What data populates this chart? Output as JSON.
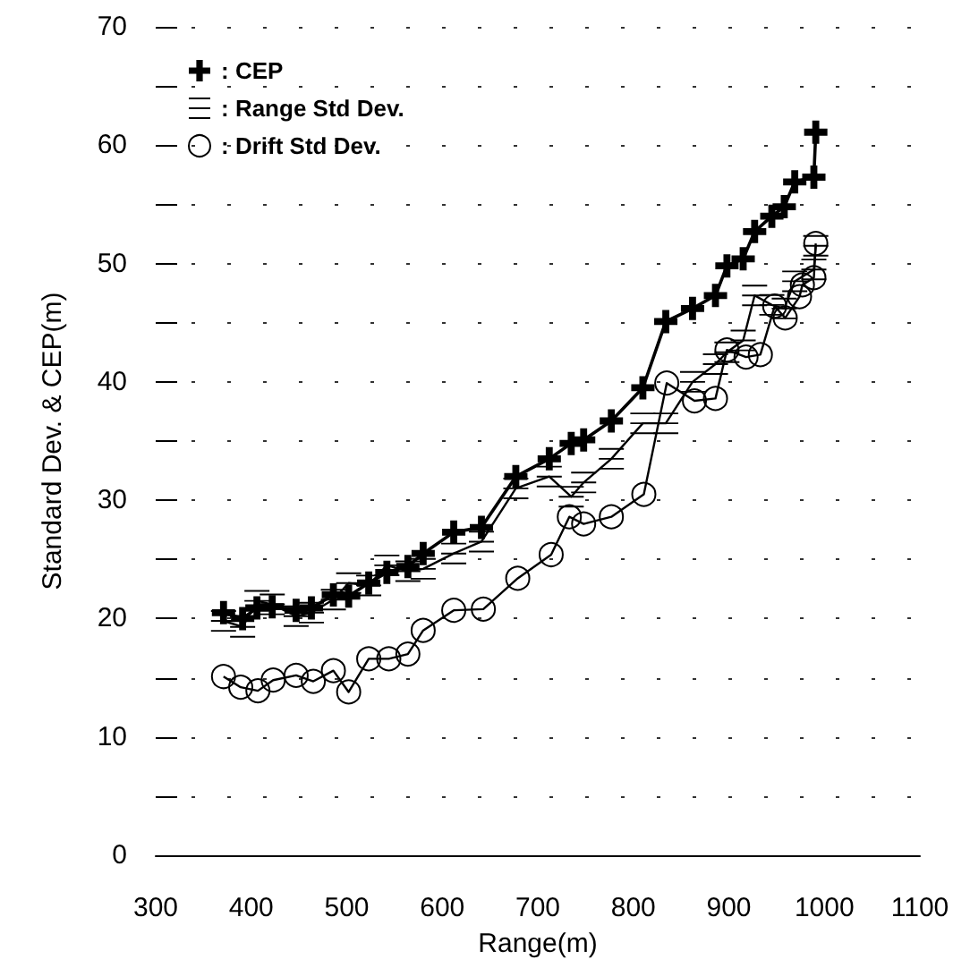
{
  "chart_data": {
    "type": "line",
    "xlabel": "Range(m)",
    "ylabel": "Standard Dev. & CEP(m)",
    "xlim": [
      300,
      1100
    ],
    "xticks": [
      300,
      400,
      500,
      600,
      700,
      800,
      900,
      1000,
      1100
    ],
    "ylim": [
      0,
      70
    ],
    "yticks": [
      0,
      10,
      20,
      30,
      40,
      50,
      60,
      70
    ],
    "grid": "y",
    "legend": "top left",
    "series": [
      {
        "name": ": CEP",
        "color": "#000000",
        "marker": "cross",
        "x": [
          371,
          391,
          406,
          422,
          447,
          463,
          486,
          502,
          523,
          542,
          564,
          580,
          612,
          641,
          677,
          712,
          735,
          748,
          777,
          810,
          834,
          862,
          886,
          898,
          915,
          927,
          945,
          958,
          969,
          989,
          991
        ],
        "values": [
          20.5,
          20.0,
          20.9,
          21.0,
          20.7,
          20.9,
          22.0,
          21.9,
          23.0,
          23.9,
          24.4,
          25.5,
          27.3,
          27.7,
          32.0,
          33.5,
          34.8,
          35.1,
          36.7,
          39.5,
          45.1,
          46.2,
          47.3,
          49.8,
          50.4,
          52.7,
          54.0,
          54.8,
          56.9,
          57.3,
          61.1
        ]
      },
      {
        "name": ": Range Std Dev.",
        "color": "#000000",
        "marker": "cross",
        "x": [
          371,
          391,
          406,
          422,
          447,
          463,
          486,
          502,
          523,
          542,
          564,
          580,
          612,
          641,
          677,
          712,
          735,
          748,
          777,
          810,
          834,
          862,
          886,
          898,
          915,
          927,
          945,
          958,
          969,
          989,
          991
        ],
        "values": [
          19.8,
          19.3,
          21.5,
          21.2,
          20.2,
          20.5,
          21.6,
          23.0,
          22.8,
          24.5,
          24.0,
          24.2,
          25.5,
          26.5,
          31.0,
          32.0,
          30.3,
          31.5,
          33.5,
          36.5,
          36.5,
          40.0,
          41.5,
          42.5,
          43.5,
          47.3,
          46.5,
          46.2,
          48.5,
          49.5,
          51.5
        ]
      },
      {
        "name": ": Drift Std Dev.",
        "color": "#000000",
        "marker": "circle",
        "x": [
          371,
          389,
          407,
          423,
          447,
          465,
          486,
          502,
          523,
          544,
          564,
          580,
          612,
          643,
          679,
          714,
          733,
          748,
          777,
          811,
          835,
          864,
          886,
          898,
          918,
          933,
          948,
          959,
          974,
          977,
          989,
          991
        ],
        "values": [
          15.1,
          14.2,
          13.9,
          14.8,
          15.2,
          14.7,
          15.6,
          13.8,
          16.6,
          16.6,
          17.0,
          19.0,
          20.7,
          20.8,
          23.4,
          25.4,
          28.6,
          28.0,
          28.6,
          30.5,
          39.9,
          38.4,
          38.6,
          42.7,
          42.1,
          42.3,
          46.4,
          45.4,
          47.2,
          48.2,
          48.8,
          51.7
        ]
      }
    ]
  }
}
